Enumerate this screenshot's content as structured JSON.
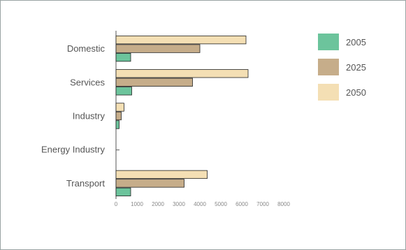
{
  "chart_data": {
    "type": "bar",
    "orientation": "horizontal",
    "categories": [
      "Domestic",
      "Services",
      "Industry",
      "Energy Industry",
      "Transport"
    ],
    "series": [
      {
        "name": "2005",
        "color": "#6cc49c",
        "values": [
          700,
          750,
          150,
          0,
          700
        ]
      },
      {
        "name": "2025",
        "color": "#c6ad8a",
        "values": [
          4000,
          3650,
          250,
          0,
          3250
        ]
      },
      {
        "name": "2050",
        "color": "#f4dfb4",
        "values": [
          6200,
          6300,
          380,
          0,
          4350
        ]
      }
    ],
    "xlim": [
      0,
      8000
    ],
    "xticks": [
      0,
      1000,
      2000,
      3000,
      4000,
      5000,
      6000,
      7000,
      8000
    ],
    "title": "",
    "xlabel": "",
    "ylabel": "",
    "grid": false,
    "legend_position": "right"
  }
}
